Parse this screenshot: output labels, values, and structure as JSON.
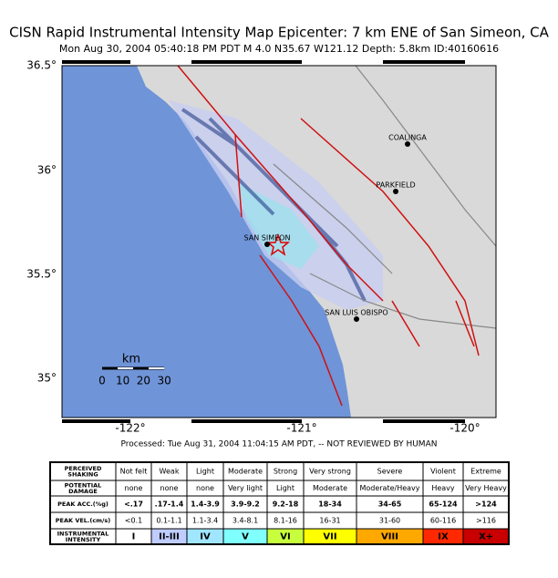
{
  "header": {
    "title": "CISN Rapid Instrumental Intensity Map Epicenter:  7 km ENE of San Simeon, CA",
    "subtitle": "Mon Aug 30, 2004 05:40:18 PM PDT   M 4.0   N35.67 W121.12   Depth: 5.8km   ID:40160616"
  },
  "map": {
    "lat_labels": [
      "36.5°",
      "36°",
      "35.5°",
      "35°"
    ],
    "lon_labels": [
      "-122°",
      "-121°",
      "-120°"
    ],
    "cities": [
      "COALINGA",
      "PARKFIELD",
      "SAN SIMEON",
      "SAN LUIS OBISPO"
    ],
    "scale": {
      "unit": "km",
      "ticks": [
        "0",
        "10",
        "20",
        "30"
      ]
    }
  },
  "footer": "Processed: Tue Aug 31, 2004 11:04:15 AM PDT, -- NOT REVIEWED BY HUMAN",
  "legend": {
    "rows": [
      [
        "PERCEIVED SHAKING",
        "Not felt",
        "Weak",
        "Light",
        "Moderate",
        "Strong",
        "Very strong",
        "Severe",
        "Violent",
        "Extreme"
      ],
      [
        "POTENTIAL DAMAGE",
        "none",
        "none",
        "none",
        "Very light",
        "Light",
        "Moderate",
        "Moderate/Heavy",
        "Heavy",
        "Very Heavy"
      ],
      [
        "PEAK ACC.(%g)",
        "<.17",
        ".17-1.4",
        "1.4-3.9",
        "3.9-9.2",
        "9.2-18",
        "18-34",
        "34-65",
        "65-124",
        ">124"
      ],
      [
        "PEAK VEL.(cm/s)",
        "<0.1",
        "0.1-1.1",
        "1.1-3.4",
        "3.4-8.1",
        "8.1-16",
        "16-31",
        "31-60",
        "60-116",
        ">116"
      ],
      [
        "INSTRUMENTAL INTENSITY",
        "I",
        "II-III",
        "IV",
        "V",
        "VI",
        "VII",
        "VIII",
        "IX",
        "X+"
      ]
    ]
  }
}
